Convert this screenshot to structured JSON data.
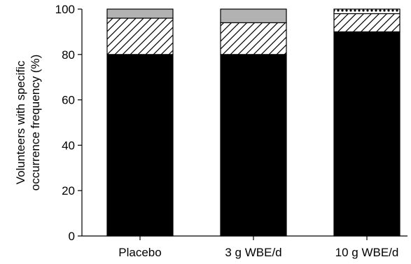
{
  "chart_data": {
    "type": "bar",
    "stacked": true,
    "categories": [
      "Placebo",
      "3 g WBE/d",
      "10 g WBE/d"
    ],
    "ylabel_lines": [
      "Volunteers with specific",
      "occurrence frequency (%)"
    ],
    "ylim": [
      0,
      100
    ],
    "yticks": [
      0,
      20,
      40,
      60,
      80,
      100
    ],
    "series": [
      {
        "values": [
          80,
          80,
          90
        ],
        "fill": "solid",
        "color": "#000000"
      },
      {
        "values": [
          16,
          14,
          8
        ],
        "fill": "hatched",
        "color": "#ffffff"
      },
      {
        "values": [
          0,
          0,
          2
        ],
        "fill": "dotted",
        "color": "#ffffff"
      },
      {
        "values": [
          4,
          6,
          0
        ],
        "fill": "grey",
        "color": "#b2b2b2"
      }
    ],
    "grid": false
  }
}
